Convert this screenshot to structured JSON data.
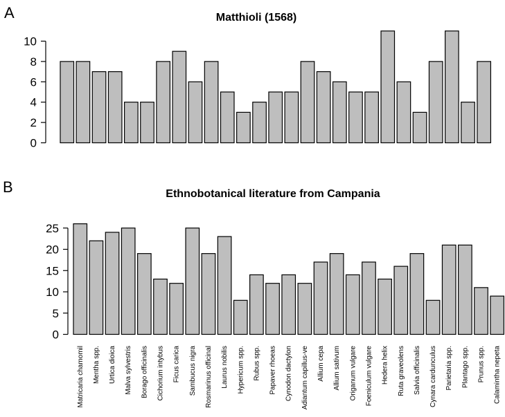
{
  "chart_data": [
    {
      "type": "bar",
      "panel_label": "A",
      "title": "Matthioli (1568)",
      "xlabel": "",
      "ylabel": "",
      "ylim": [
        0,
        11
      ],
      "yticks": [
        0,
        2,
        4,
        6,
        8,
        10
      ],
      "categories": [
        "Matricaria chamomil",
        "Mentha spp.",
        "Urtica dioica",
        "Malva sylvestris",
        "Borago officinalis",
        "Cichorium intybus",
        "Ficus carica",
        "Sambucus nigra",
        "Rosmarinus officinal",
        "Laurus nobilis",
        "Hypericum spp.",
        "Rubus spp.",
        "Papaver rhoeas",
        "Cynodon dactylon",
        "Adiantum capillus-ve",
        "Allium cepa",
        "Allium sativum",
        "Origanum vulgare",
        "Foeniculum vulgare",
        "Hedera helix",
        "Ruta graveolens",
        "Salvia officinalis",
        "Cynara cardunculus",
        "Parietaria spp.",
        "Plantago spp.",
        "Prunus spp.",
        "Calamintha nepeta"
      ],
      "values": [
        8,
        8,
        7,
        7,
        4,
        4,
        8,
        9,
        6,
        8,
        5,
        3,
        4,
        5,
        5,
        8,
        7,
        6,
        5,
        5,
        11,
        6,
        3,
        8,
        11,
        4,
        8
      ],
      "grid": false,
      "show_category_labels": false
    },
    {
      "type": "bar",
      "panel_label": "B",
      "title": "Ethnobotanical literature from Campania",
      "xlabel": "",
      "ylabel": "",
      "ylim": [
        0,
        26
      ],
      "yticks": [
        0,
        5,
        10,
        15,
        20,
        25
      ],
      "categories": [
        "Matricaria chamomil",
        "Mentha spp.",
        "Urtica dioica",
        "Malva sylvestris",
        "Borago officinalis",
        "Cichorium intybus",
        "Ficus carica",
        "Sambucus nigra",
        "Rosmarinus officinal",
        "Laurus nobilis",
        "Hypericum spp.",
        "Rubus spp.",
        "Papaver rhoeas",
        "Cynodon dactylon",
        "Adiantum capillus-ve",
        "Allium cepa",
        "Allium sativum",
        "Origanum vulgare",
        "Foeniculum vulgare",
        "Hedera helix",
        "Ruta graveolens",
        "Salvia officinalis",
        "Cynara cardunculus",
        "Parietaria spp.",
        "Plantago spp.",
        "Prunus spp.",
        "Calamintha nepeta"
      ],
      "values": [
        26,
        22,
        24,
        25,
        19,
        13,
        12,
        25,
        19,
        23,
        8,
        14,
        12,
        14,
        12,
        17,
        19,
        14,
        17,
        13,
        16,
        19,
        8,
        21,
        21,
        11,
        9
      ],
      "grid": false,
      "show_category_labels": true
    }
  ],
  "colors": {
    "bar_fill": "#bebebe",
    "bar_stroke": "#000000",
    "background": "#ffffff"
  }
}
